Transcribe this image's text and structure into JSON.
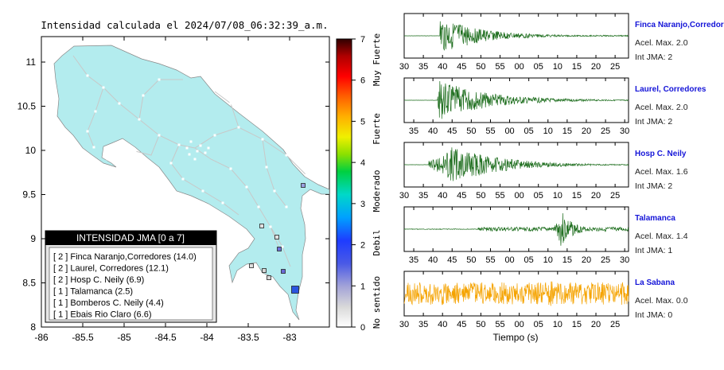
{
  "map": {
    "title": "Intensidad calculada el 2024/07/08_06:32:39_a.m.",
    "x_ticks": [
      "-86",
      "-85.5",
      "-85",
      "-84.5",
      "-84",
      "-83.5",
      "-83"
    ],
    "y_ticks": [
      "11",
      "10.5",
      "10",
      "9.5",
      "9",
      "8.5",
      "8"
    ],
    "land_color": "#b3ecee",
    "legend_title": "INTENSIDAD JMA [0 a 7]",
    "legend_items": [
      "[ 2 ]  Finca Naranjo,Corredores (14.0)",
      "[ 2 ]  Laurel, Corredores (12.1)",
      "[ 2 ]  Hosp C. Neily (6.9)",
      "[ 1 ]  Talamanca (2.5)",
      "[ 1 ]  Bomberos C. Neily (4.4)",
      "[ 1 ]  Ebais Rio Claro (6.6)"
    ]
  },
  "colorbar": {
    "ticks": [
      "7",
      "6",
      "5",
      "4",
      "3",
      "2",
      "1",
      "0"
    ],
    "categories": [
      "Muy Fuerte",
      "Fuerte",
      "Moderado",
      "Debil",
      "No sentido"
    ]
  },
  "traces": [
    {
      "station": "Finca Naranjo,Corredor",
      "accel": "Acel. Max. 2.0",
      "int": "Int JMA: 2",
      "color": "#1e6e1e",
      "ticks": [
        "30",
        "35",
        "40",
        "45",
        "50",
        "55",
        "00",
        "05",
        "10",
        "15",
        "20",
        "25"
      ],
      "first": 0,
      "onset": 0.16,
      "peak": 0.15,
      "amp": 0.95,
      "decay": 0.18,
      "noise": 0.03,
      "seed": 3
    },
    {
      "station": "Laurel, Corredores",
      "accel": "Acel. Max. 2.0",
      "int": "Int JMA: 2",
      "color": "#1e6e1e",
      "ticks": [
        "35",
        "40",
        "45",
        "50",
        "55",
        "00",
        "05",
        "10",
        "15",
        "20",
        "25",
        "30"
      ],
      "first": 0.5,
      "onset": 0.15,
      "peak": 0.16,
      "amp": 0.95,
      "decay": 0.22,
      "noise": 0.03,
      "seed": 7
    },
    {
      "station": "Hosp C. Neily",
      "accel": "Acel. Max. 1.6",
      "int": "Int JMA: 2",
      "color": "#1e6e1e",
      "ticks": [
        "30",
        "35",
        "40",
        "45",
        "50",
        "55",
        "00",
        "05",
        "10",
        "15",
        "20",
        "25",
        "30"
      ],
      "first": 0,
      "onset": 0.11,
      "peak": 0.22,
      "amp": 0.95,
      "decay": 0.2,
      "noise": 0.03,
      "seed": 11
    },
    {
      "station": "Talamanca",
      "accel": "Acel. Max. 1.4",
      "int": "Int JMA: 1",
      "color": "#1e6e1e",
      "ticks": [
        "35",
        "40",
        "45",
        "50",
        "55",
        "00",
        "05",
        "10",
        "15",
        "20",
        "25",
        "30"
      ],
      "first": 0.5,
      "onset": 0.33,
      "peak": 0.7,
      "amp": 0.95,
      "decay": 0.05,
      "noise": 0.1,
      "seed": 17
    },
    {
      "station": "La Sabana",
      "accel": "Acel. Max. 0.0",
      "int": "Int JMA: 0",
      "color": "#f5a300",
      "ticks": [
        "30",
        "35",
        "40",
        "45",
        "50",
        "55",
        "00",
        "05",
        "10",
        "15",
        "20",
        "25"
      ],
      "first": 0,
      "onset": 0,
      "peak": 0.65,
      "amp": 0.6,
      "decay": 0.5,
      "noise": 0.55,
      "seed": 23
    }
  ],
  "traces_xlabel": "Tiempo (s)"
}
